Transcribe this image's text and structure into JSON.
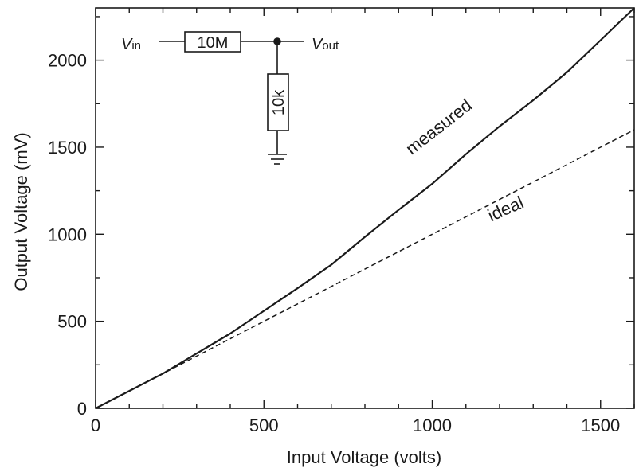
{
  "chart_data": {
    "type": "line",
    "xlabel": "Input Voltage (volts)",
    "ylabel": "Output Voltage (mV)",
    "xlim": [
      0,
      1600
    ],
    "ylim": [
      0,
      2300
    ],
    "xticks": [
      0,
      500,
      1000,
      1500
    ],
    "yticks": [
      0,
      500,
      1000,
      1500,
      2000
    ],
    "grid": false,
    "series": [
      {
        "name": "measured",
        "style": "solid",
        "color": "#1a1a1a",
        "x": [
          0,
          100,
          200,
          300,
          400,
          500,
          600,
          700,
          800,
          900,
          1000,
          1100,
          1200,
          1300,
          1400,
          1500,
          1600
        ],
        "y": [
          0,
          100,
          200,
          315,
          430,
          560,
          690,
          825,
          985,
          1140,
          1290,
          1460,
          1620,
          1770,
          1930,
          2115,
          2300
        ]
      },
      {
        "name": "ideal",
        "style": "dashed",
        "color": "#1a1a1a",
        "x": [
          0,
          1600
        ],
        "y": [
          0,
          1600
        ]
      }
    ],
    "annotations": [
      {
        "text": "measured",
        "x": 1030,
        "y": 1590,
        "angle": -38
      },
      {
        "text": "ideal",
        "x": 1225,
        "y": 1115,
        "angle": -24
      }
    ]
  },
  "circuit": {
    "vin_main": "V",
    "vin_sub": "in",
    "vout_main": "V",
    "vout_sub": "out",
    "r_series": "10M",
    "r_shunt": "10k"
  }
}
